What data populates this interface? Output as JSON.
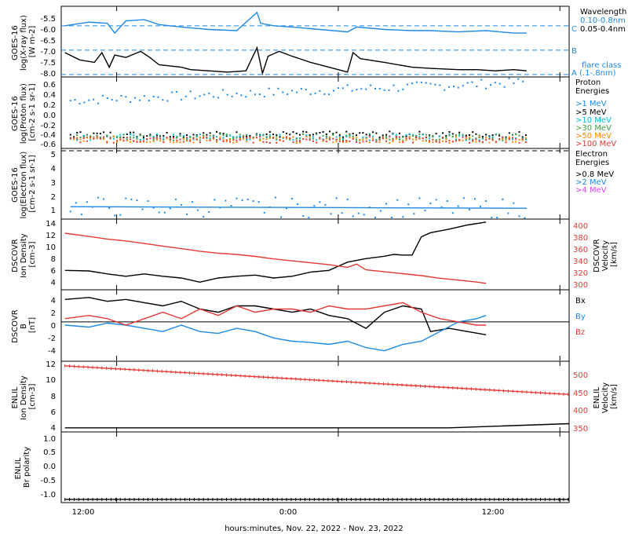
{
  "figure": {
    "x_axis_label": "hours:minutes, Nov. 22, 2022 - Nov. 23, 2022",
    "x_ticks": [
      "12:00",
      "0:00",
      "12:00"
    ],
    "x_hours_range": [
      9,
      36.5
    ],
    "x_tick_hours": [
      12,
      24,
      36
    ]
  },
  "colors": {
    "black": "#000000",
    "blue": "#1e88e5",
    "red": "#e53935",
    "cyan": "#00bcd4",
    "green": "#43a047",
    "orange": "#fb8c00",
    "magenta": "#e040fb"
  },
  "chart_data": [
    {
      "type": "line",
      "panel": "xray",
      "ylabel": [
        "GOES-16",
        "log(X-ray flux)",
        "[W m-2]"
      ],
      "ylim": [
        -8.1,
        -5.2
      ],
      "yticks": [
        "-5.5",
        "-6.0",
        "-6.5",
        "-7.0",
        "-7.5",
        "-8.0"
      ],
      "legend_title": "Wavelength",
      "flare_class_label": [
        "flare class",
        "(.1-.8nm)"
      ],
      "flare_levels": [
        {
          "name": "C",
          "value": -6.0
        },
        {
          "name": "B",
          "value": -7.0
        },
        {
          "name": "A",
          "value": -8.0
        }
      ],
      "series": [
        {
          "name": "0.10-0.8nm",
          "color": "#1e88e5",
          "x": [
            9.2,
            10.5,
            11.5,
            11.9,
            12.5,
            13.5,
            14.3,
            15.5,
            17.0,
            18.5,
            19.6,
            19.8,
            20.5,
            21.5,
            23.0,
            24.5,
            25.0,
            26.5,
            28.0,
            29.0,
            30.5,
            32.0,
            33.5,
            34.2
          ],
          "y": [
            -6.0,
            -5.85,
            -5.9,
            -6.3,
            -5.8,
            -5.75,
            -5.95,
            -6.05,
            -6.15,
            -6.2,
            -5.45,
            -5.9,
            -6.0,
            -6.05,
            -6.15,
            -6.25,
            -6.05,
            -6.15,
            -6.2,
            -6.2,
            -6.25,
            -6.2,
            -6.3,
            -6.3
          ]
        },
        {
          "name": "0.05-0.4nm",
          "color": "#000000",
          "x": [
            9.2,
            10.0,
            10.8,
            11.2,
            11.6,
            11.9,
            12.5,
            13.3,
            13.8,
            14.3,
            15.5,
            16.0,
            17.0,
            18.0,
            19.0,
            19.6,
            19.9,
            20.2,
            20.8,
            21.5,
            22.5,
            23.5,
            24.5,
            24.8,
            25.2,
            26.5,
            28.0,
            29.0,
            30.5,
            31.5,
            32.5,
            33.5,
            34.2
          ],
          "y": [
            -7.1,
            -7.4,
            -7.5,
            -7.1,
            -7.7,
            -7.2,
            -7.3,
            -7.05,
            -7.3,
            -7.6,
            -7.7,
            -7.8,
            -7.85,
            -7.9,
            -7.85,
            -6.9,
            -7.95,
            -7.25,
            -7.05,
            -7.25,
            -7.5,
            -7.7,
            -7.9,
            -7.1,
            -7.35,
            -7.5,
            -7.7,
            -7.75,
            -7.8,
            -7.8,
            -7.85,
            -7.8,
            -7.85
          ]
        }
      ]
    },
    {
      "type": "scatter",
      "panel": "proton",
      "ylabel": [
        "GOES-16",
        "log(Proton flux)",
        "[cm-2 s-1 sr-1]"
      ],
      "ylim": [
        -0.7,
        0.65
      ],
      "yticks": [
        "0.6",
        "0.4",
        "0.2",
        "0.0",
        "-0.2",
        "-0.4",
        "-0.6"
      ],
      "legend_title": [
        "Proton",
        "Energies"
      ],
      "series": [
        {
          "name": ">1 MeV",
          "color": "#1e88e5",
          "x": [
            9.5,
            34.2
          ],
          "y": [
            0.2,
            0.55
          ]
        },
        {
          "name": ">5 MeV",
          "color": "#000000",
          "x": [
            9.5,
            34.2
          ],
          "y": [
            -0.45,
            -0.45
          ]
        },
        {
          "name": ">10 MeV",
          "color": "#00bcd4",
          "x": [
            9.5,
            34.2
          ],
          "y": [
            -0.5,
            -0.5
          ]
        },
        {
          "name": ">30 MeV",
          "color": "#43a047",
          "x": [
            9.5,
            34.2
          ],
          "y": [
            -0.5,
            -0.5
          ]
        },
        {
          "name": ">50 MeV",
          "color": "#fb8c00",
          "x": [
            9.5,
            34.2
          ],
          "y": [
            -0.55,
            -0.55
          ]
        },
        {
          "name": ">100 MeV",
          "color": "#e53935",
          "x": [
            9.5,
            34.2
          ],
          "y": [
            -0.55,
            -0.55
          ]
        }
      ]
    },
    {
      "type": "scatter",
      "panel": "electron",
      "ylabel": [
        "GOES-16",
        "log(Electron flux)",
        "[cm-2 s-1 sr-1]"
      ],
      "ylim": [
        0.6,
        5.15
      ],
      "yticks": [
        "5",
        "4",
        "3",
        "2",
        "1"
      ],
      "legend_title": [
        "Electron",
        "Energies"
      ],
      "threshold": 5.0,
      "series": [
        {
          "name": ">0.8 MeV",
          "color": "#000000",
          "x": [],
          "y": []
        },
        {
          "name": ">2 MeV",
          "color": "#1e88e5",
          "x": [
            9.5,
            34.2
          ],
          "y": [
            1.4,
            1.3
          ]
        },
        {
          "name": ">4 MeV",
          "color": "#e040fb",
          "x": [],
          "y": []
        }
      ]
    },
    {
      "type": "line",
      "panel": "dscovr_plasma",
      "ylabel": [
        "DSCOVR",
        "Ion Density",
        "[cm-3]"
      ],
      "ylim": [
        2.5,
        14.5
      ],
      "yticks": [
        "14",
        "12",
        "10",
        "8",
        "6",
        "4"
      ],
      "y2label": [
        "DSCOVR",
        "Velocity",
        "[km/s]"
      ],
      "y2lim": [
        295,
        405
      ],
      "y2ticks": [
        "400",
        "380",
        "360",
        "340",
        "320",
        "300"
      ],
      "series": [
        {
          "name": "Ion Density",
          "axis": "left",
          "color": "#000000",
          "x": [
            9.2,
            10.5,
            11.5,
            12.5,
            13.5,
            14.5,
            15.5,
            16.5,
            17.5,
            18.5,
            19.5,
            20.5,
            21.5,
            22.5,
            23.5,
            24.0,
            24.5,
            25.5,
            26.5,
            27.0,
            27.5,
            28.0,
            28.5,
            29.0,
            30.0,
            31.0,
            32.0
          ],
          "y": [
            5.8,
            5.7,
            5.2,
            4.8,
            5.2,
            4.8,
            4.5,
            3.8,
            4.5,
            4.8,
            5.0,
            4.5,
            4.8,
            5.5,
            5.8,
            6.5,
            7.2,
            7.8,
            8.2,
            8.5,
            8.4,
            8.4,
            11.5,
            12.2,
            12.8,
            13.5,
            14.0
          ]
        },
        {
          "name": "Velocity",
          "axis": "right",
          "color": "#e53935",
          "x": [
            9.2,
            10.5,
            11.5,
            12.5,
            13.5,
            14.5,
            15.5,
            16.5,
            17.5,
            18.5,
            19.5,
            20.5,
            21.5,
            22.5,
            23.5,
            24.5,
            25.0,
            25.5,
            26.5,
            27.5,
            28.5,
            29.5,
            30.5,
            31.5,
            32.0
          ],
          "y": [
            383,
            378,
            374,
            371,
            367,
            363,
            359,
            355,
            352,
            350,
            347,
            343,
            340,
            337,
            334,
            330,
            335,
            326,
            323,
            320,
            317,
            313,
            310,
            307,
            305
          ]
        }
      ]
    },
    {
      "type": "line",
      "panel": "dscovr_field",
      "ylabel": [
        "DSCOVR",
        "B",
        "[nT]"
      ],
      "ylim": [
        -6,
        5
      ],
      "yticks": [
        "4",
        "2",
        "0",
        "-2",
        "-4"
      ],
      "series": [
        {
          "name": "Bx",
          "color": "#000000",
          "x": [
            9.2,
            10.5,
            11.5,
            12.5,
            13.5,
            14.5,
            15.5,
            16.5,
            17.5,
            18.5,
            19.5,
            20.5,
            21.5,
            22.5,
            23.5,
            24.5,
            25.5,
            26.5,
            27.5,
            28.5,
            29.0,
            30.0,
            31.0,
            32.0
          ],
          "y": [
            3.5,
            3.8,
            3.2,
            3.5,
            3.0,
            2.5,
            3.2,
            2.0,
            1.5,
            2.5,
            2.5,
            2.0,
            1.5,
            2.0,
            1.0,
            0.5,
            -1.0,
            1.5,
            2.5,
            2.0,
            -1.5,
            -1.0,
            -1.5,
            -2.0
          ]
        },
        {
          "name": "By",
          "color": "#1e88e5",
          "x": [
            9.2,
            10.5,
            11.5,
            12.5,
            13.5,
            14.5,
            15.5,
            16.5,
            17.5,
            18.5,
            19.5,
            20.5,
            21.5,
            22.5,
            23.5,
            24.5,
            25.5,
            26.5,
            27.5,
            28.5,
            29.5,
            30.5,
            31.5,
            32.0
          ],
          "y": [
            -0.5,
            -0.8,
            -0.2,
            -0.5,
            -1.0,
            -1.5,
            -0.5,
            -1.5,
            -1.8,
            -1.0,
            -1.5,
            -2.5,
            -3.0,
            -3.2,
            -3.5,
            -3.0,
            -4.0,
            -4.5,
            -3.5,
            -3.0,
            -1.5,
            0.0,
            0.5,
            1.0
          ]
        },
        {
          "name": "Bz",
          "color": "#e53935",
          "x": [
            9.2,
            10.5,
            11.5,
            12.5,
            13.5,
            14.5,
            15.5,
            16.5,
            17.5,
            18.5,
            19.5,
            20.5,
            21.5,
            22.5,
            23.5,
            24.5,
            25.5,
            26.5,
            27.5,
            28.5,
            29.5,
            30.5,
            31.5,
            32.0
          ],
          "y": [
            0.5,
            1.0,
            0.5,
            -0.5,
            0.5,
            1.5,
            0.5,
            2.0,
            1.0,
            2.5,
            1.5,
            2.0,
            2.0,
            1.5,
            2.5,
            2.0,
            2.0,
            2.5,
            3.0,
            1.5,
            0.5,
            0.0,
            -0.5,
            -0.5
          ]
        }
      ]
    },
    {
      "type": "line",
      "panel": "enlil_plasma",
      "ylabel": [
        "ENLIL",
        "Ion Density",
        "[cm-3]"
      ],
      "ylim": [
        3.5,
        12.1
      ],
      "yticks": [
        "12",
        "10",
        "8",
        "6",
        "4"
      ],
      "y2label": [
        "ENLIL",
        "Velocity",
        "[km/s]"
      ],
      "y2lim": [
        340,
        540
      ],
      "y2ticks": [
        "500",
        "450",
        "400",
        "350"
      ],
      "series": [
        {
          "name": "Ion Density",
          "axis": "left",
          "color": "#000000",
          "x": [
            9.2,
            30.0,
            36.5
          ],
          "y": [
            4.0,
            4.0,
            4.5
          ]
        },
        {
          "name": "Velocity",
          "axis": "right",
          "color": "#e53935",
          "x": [
            9.2,
            36.5
          ],
          "y": [
            527,
            446
          ]
        }
      ]
    },
    {
      "type": "line",
      "panel": "enlil_polarity",
      "ylabel": [
        "ENLIL",
        "Br polarity"
      ],
      "ylim": [
        -1.1,
        1.1
      ],
      "yticks": [
        "1.0",
        "0.5",
        "0.0",
        "-0.5",
        "-1.0"
      ],
      "series": [
        {
          "name": "Br polarity",
          "color": "#000000",
          "x": [
            9.2,
            36.5
          ],
          "y": [
            -1.0,
            -1.0
          ]
        }
      ]
    }
  ]
}
